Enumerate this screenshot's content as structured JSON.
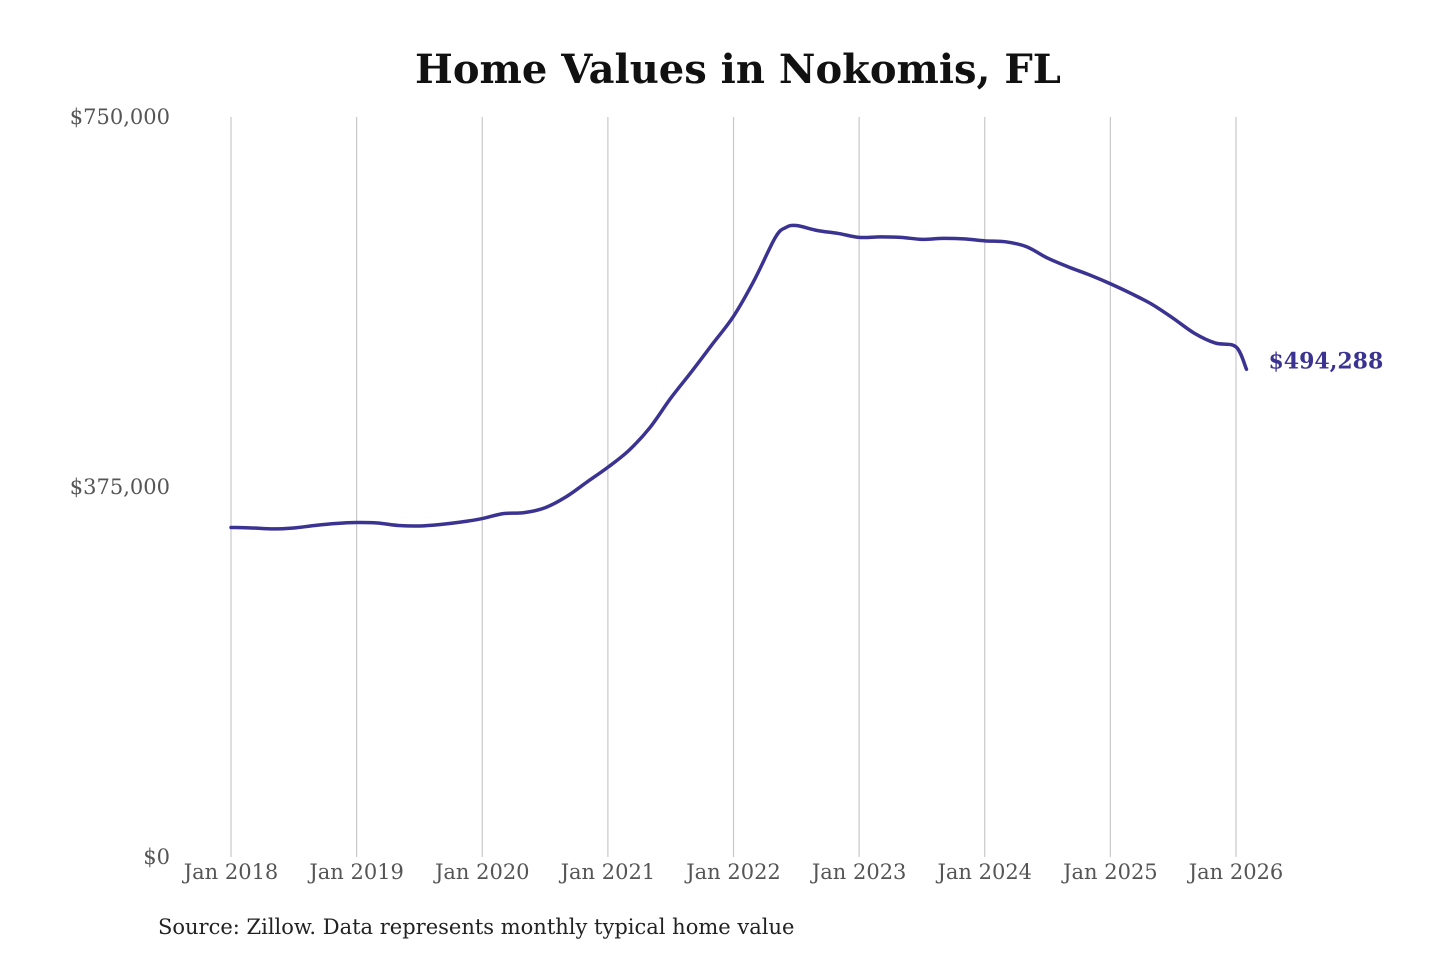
{
  "chart_data": {
    "type": "line",
    "title": "Home Values in Nokomis, FL",
    "xlabel": "",
    "ylabel": "",
    "ylim": [
      0,
      750000
    ],
    "xlim": [
      "2018-01",
      "2026-02"
    ],
    "y_ticks": [
      "$0",
      "$375,000",
      "$750,000"
    ],
    "y_tick_values": [
      0,
      375000,
      750000
    ],
    "x_ticks": [
      "Jan 2018",
      "Jan 2019",
      "Jan 2020",
      "Jan 2021",
      "Jan 2022",
      "Jan 2023",
      "Jan 2024",
      "Jan 2025",
      "Jan 2026"
    ],
    "x_tick_dates": [
      "2018-01",
      "2019-01",
      "2020-01",
      "2021-01",
      "2022-01",
      "2023-01",
      "2024-01",
      "2025-01",
      "2026-01"
    ],
    "grid": "vertical",
    "legend": "none",
    "line_color": "#3b3391",
    "end_label": "$494,288",
    "series": [
      {
        "x": [
          "2018-01",
          "2018-03",
          "2018-05",
          "2018-07",
          "2018-09",
          "2018-11",
          "2019-01",
          "2019-03",
          "2019-05",
          "2019-07",
          "2019-09",
          "2019-11",
          "2020-01",
          "2020-03",
          "2020-05",
          "2020-07",
          "2020-09",
          "2020-11",
          "2021-01",
          "2021-03",
          "2021-05",
          "2021-07",
          "2021-09",
          "2021-11",
          "2022-01",
          "2022-03",
          "2022-05",
          "2022-06",
          "2022-07",
          "2022-09",
          "2022-11",
          "2023-01",
          "2023-03",
          "2023-05",
          "2023-07",
          "2023-09",
          "2023-11",
          "2024-01",
          "2024-03",
          "2024-05",
          "2024-07",
          "2024-09",
          "2024-11",
          "2025-01",
          "2025-03",
          "2025-05",
          "2025-07",
          "2025-09",
          "2025-11",
          "2026-01",
          "2026-02"
        ],
        "y": [
          334000,
          333500,
          332500,
          333500,
          336000,
          338000,
          339000,
          338500,
          336000,
          335500,
          337000,
          339500,
          343000,
          348000,
          349000,
          354000,
          365000,
          380000,
          395000,
          412000,
          435000,
          465000,
          492000,
          520000,
          548000,
          585000,
          628000,
          638000,
          640000,
          635000,
          632000,
          628000,
          628500,
          628000,
          626000,
          627000,
          626500,
          624500,
          623500,
          618500,
          607000,
          598000,
          590000,
          581000,
          571000,
          560000,
          546000,
          531000,
          521000,
          517000,
          494288
        ]
      }
    ]
  },
  "source_note": "Source: Zillow. Data represents monthly typical home value"
}
